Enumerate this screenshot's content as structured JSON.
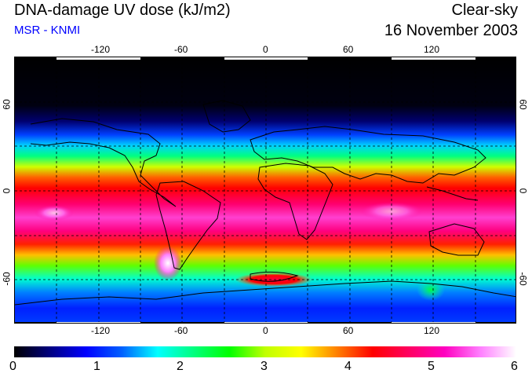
{
  "header": {
    "title": "DNA-damage UV dose (kJ/m2)",
    "source": "MSR - KNMI",
    "mode": "Clear-sky",
    "date": "16 November 2003"
  },
  "map": {
    "lon_ticks_top": [
      "-120",
      "-60",
      "0",
      "60",
      "120"
    ],
    "lon_ticks_bottom": [
      "-120",
      "-60",
      "0",
      "60",
      "120"
    ],
    "lat_ticks_left": [
      "60",
      "0",
      "-60"
    ],
    "lat_ticks_right": [
      "60",
      "0",
      "-60"
    ]
  },
  "colorbar": {
    "labels": [
      "0",
      "1",
      "2",
      "3",
      "4",
      "5",
      "6"
    ],
    "colors": [
      "#000000",
      "#000080",
      "#0000ff",
      "#0060ff",
      "#00ffff",
      "#00ff80",
      "#00ff00",
      "#c0ff00",
      "#ffff00",
      "#ff8000",
      "#ff0000",
      "#ff0060",
      "#ff00c0",
      "#ff80ff",
      "#ffffff"
    ]
  }
}
